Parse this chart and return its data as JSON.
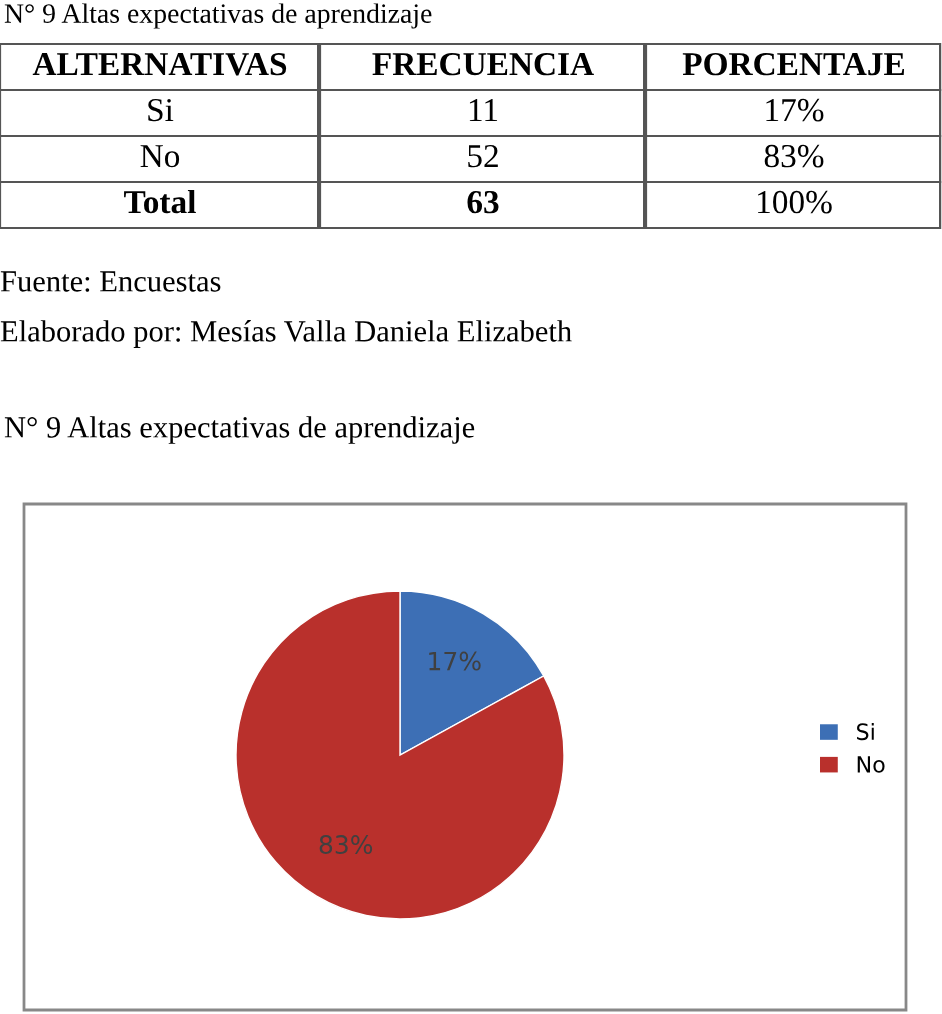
{
  "chart_data": [
    {
      "type": "other",
      "title": "N° 9 Altas expectativas de aprendizaje",
      "annotations": [
        "ALTERNATIVAS",
        "FRECUENCIA",
        "PORCENTAJE",
        "Si",
        "11",
        "17%",
        "No",
        "52",
        "83%",
        "Total",
        "63",
        "100%",
        "Fuente: Encuestas",
        "Elaborado por: Mesías Valla Daniela Elizabeth"
      ]
    },
    {
      "type": "pie",
      "title": "N° 9 Altas expectativas de aprendizaje",
      "categories": [
        "Si",
        "No"
      ],
      "values": [
        17,
        83
      ],
      "colors": [
        "#3d6fb5",
        "#b9302c"
      ],
      "value_labels": [
        "17%",
        "83%"
      ],
      "legend": "right"
    }
  ]
}
